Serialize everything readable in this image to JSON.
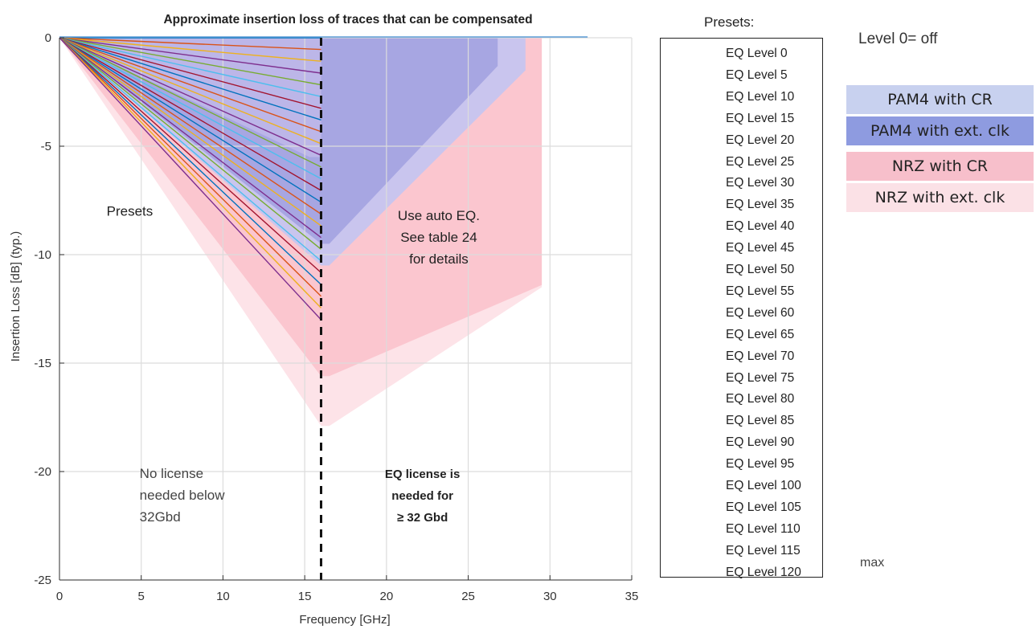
{
  "chart_data": {
    "type": "line",
    "title": "Approximate insertion loss of traces that can be compensated",
    "xlabel": "Frequency [GHz]",
    "ylabel": "Insertion Loss [dB] (typ.)",
    "xlim": [
      0,
      35
    ],
    "ylim": [
      -25,
      0
    ],
    "xticks": [
      0,
      5,
      10,
      15,
      20,
      25,
      30,
      35
    ],
    "yticks": [
      0,
      -5,
      -10,
      -15,
      -20,
      -25
    ],
    "grid": true,
    "legend_title": "Presets:",
    "legend_placement": "right",
    "series": [
      {
        "name": "EQ Level 0",
        "color": "#0072BD",
        "x": [
          0,
          16
        ],
        "y": [
          0,
          0
        ]
      },
      {
        "name": "EQ Level 5",
        "color": "#D95319",
        "x": [
          0,
          16
        ],
        "y": [
          0,
          -0.54
        ]
      },
      {
        "name": "EQ Level 10",
        "color": "#EDB120",
        "x": [
          0,
          16
        ],
        "y": [
          0,
          -1.08
        ]
      },
      {
        "name": "EQ Level 15",
        "color": "#7E2F8E",
        "x": [
          0,
          16
        ],
        "y": [
          0,
          -1.63
        ]
      },
      {
        "name": "EQ Level 20",
        "color": "#77AC30",
        "x": [
          0,
          16
        ],
        "y": [
          0,
          -2.17
        ]
      },
      {
        "name": "EQ Level 25",
        "color": "#4DBEEE",
        "x": [
          0,
          16
        ],
        "y": [
          0,
          -2.71
        ]
      },
      {
        "name": "EQ Level 30",
        "color": "#A2142F",
        "x": [
          0,
          16
        ],
        "y": [
          0,
          -3.25
        ]
      },
      {
        "name": "EQ Level 35",
        "color": "#0072BD",
        "x": [
          0,
          16
        ],
        "y": [
          0,
          -3.79
        ]
      },
      {
        "name": "EQ Level 40",
        "color": "#D95319",
        "x": [
          0,
          16
        ],
        "y": [
          0,
          -4.33
        ]
      },
      {
        "name": "EQ Level 45",
        "color": "#EDB120",
        "x": [
          0,
          16
        ],
        "y": [
          0,
          -4.88
        ]
      },
      {
        "name": "EQ Level 50",
        "color": "#7E2F8E",
        "x": [
          0,
          16
        ],
        "y": [
          0,
          -5.42
        ]
      },
      {
        "name": "EQ Level 55",
        "color": "#77AC30",
        "x": [
          0,
          16
        ],
        "y": [
          0,
          -5.96
        ]
      },
      {
        "name": "EQ Level 60",
        "color": "#4DBEEE",
        "x": [
          0,
          16
        ],
        "y": [
          0,
          -6.5
        ]
      },
      {
        "name": "EQ Level 65",
        "color": "#A2142F",
        "x": [
          0,
          16
        ],
        "y": [
          0,
          -7.04
        ]
      },
      {
        "name": "EQ Level 70",
        "color": "#0072BD",
        "x": [
          0,
          16
        ],
        "y": [
          0,
          -7.58
        ]
      },
      {
        "name": "EQ Level 75",
        "color": "#D95319",
        "x": [
          0,
          16
        ],
        "y": [
          0,
          -8.13
        ]
      },
      {
        "name": "EQ Level 80",
        "color": "#EDB120",
        "x": [
          0,
          16
        ],
        "y": [
          0,
          -8.67
        ]
      },
      {
        "name": "EQ Level 85",
        "color": "#7E2F8E",
        "x": [
          0,
          16
        ],
        "y": [
          0,
          -9.21
        ]
      },
      {
        "name": "EQ Level 90",
        "color": "#77AC30",
        "x": [
          0,
          16
        ],
        "y": [
          0,
          -9.75
        ]
      },
      {
        "name": "EQ Level 95",
        "color": "#4DBEEE",
        "x": [
          0,
          16
        ],
        "y": [
          0,
          -10.29
        ]
      },
      {
        "name": "EQ Level 100",
        "color": "#A2142F",
        "x": [
          0,
          16
        ],
        "y": [
          0,
          -10.83
        ]
      },
      {
        "name": "EQ Level 105",
        "color": "#0072BD",
        "x": [
          0,
          16
        ],
        "y": [
          0,
          -11.38
        ]
      },
      {
        "name": "EQ Level 110",
        "color": "#D95319",
        "x": [
          0,
          16
        ],
        "y": [
          0,
          -11.92
        ]
      },
      {
        "name": "EQ Level 115",
        "color": "#EDB120",
        "x": [
          0,
          16
        ],
        "y": [
          0,
          -12.46
        ]
      },
      {
        "name": "EQ Level 120",
        "color": "#7E2F8E",
        "x": [
          0,
          16
        ],
        "y": [
          0,
          -13.0
        ]
      }
    ],
    "regions": [
      {
        "name": "NRZ with ext. clk",
        "color": "#FDE3E8",
        "points": [
          [
            0,
            0
          ],
          [
            29.5,
            0
          ],
          [
            29.5,
            -11.5
          ],
          [
            16.5,
            -17.9
          ],
          [
            16,
            -17.9
          ],
          [
            0,
            0
          ]
        ]
      },
      {
        "name": "NRZ with CR",
        "color": "#FBC6CF",
        "points": [
          [
            0,
            0
          ],
          [
            29.5,
            0
          ],
          [
            29.5,
            -11.4
          ],
          [
            16.5,
            -15.6
          ],
          [
            16,
            -15.6
          ],
          [
            0,
            0
          ]
        ]
      },
      {
        "name": "PAM4 with ext. clk",
        "color": "#C9C5EE",
        "points": [
          [
            0,
            0
          ],
          [
            28.5,
            0
          ],
          [
            28.5,
            -1.5
          ],
          [
            16.5,
            -10.5
          ],
          [
            16,
            -10.5
          ],
          [
            0,
            0
          ]
        ]
      },
      {
        "name": "PAM4 with CR",
        "color": "#A7A6E2",
        "points": [
          [
            0,
            0
          ],
          [
            26.8,
            0
          ],
          [
            26.8,
            -1.3
          ],
          [
            16.5,
            -9.5
          ],
          [
            16,
            -9.5
          ],
          [
            0,
            0
          ]
        ]
      },
      {
        "name": "",
        "color": "#BCB6E8",
        "points": [
          [
            0,
            0
          ],
          [
            16,
            0
          ],
          [
            16,
            -5.5
          ],
          [
            15.3,
            -5.5
          ],
          [
            0,
            0
          ]
        ]
      }
    ],
    "threshold_x": 16,
    "annotations": [
      {
        "text": "Presets",
        "x": 4.3,
        "y": -8.2
      },
      {
        "text": "Use auto EQ.",
        "x": 23.2,
        "y": -8.4
      },
      {
        "text": "See table 24",
        "x": 23.2,
        "y": -9.4
      },
      {
        "text": "for details",
        "x": 23.2,
        "y": -10.4
      },
      {
        "text": "No license",
        "x": 4.9,
        "y": -20.3
      },
      {
        "text": "needed below",
        "x": 4.9,
        "y": -21.3
      },
      {
        "text": "32Gbd",
        "x": 4.9,
        "y": -22.3
      },
      {
        "text": "EQ license is",
        "x": 22.2,
        "y": -20.3
      },
      {
        "text": "needed for",
        "x": 22.2,
        "y": -21.3
      },
      {
        "text": "≥ 32 Gbd",
        "x": 22.2,
        "y": -22.3
      }
    ]
  },
  "notes": {
    "level0": "Level 0= off",
    "max": "max"
  },
  "keys": [
    {
      "label": "PAM4 with CR",
      "color": "#C8D1EF"
    },
    {
      "label": "PAM4 with ext. clk",
      "color": "#8E9BE0"
    },
    {
      "label": "NRZ with CR",
      "color": "#F7BFCB"
    },
    {
      "label": "NRZ with ext. clk",
      "color": "#FBE1E6"
    }
  ]
}
